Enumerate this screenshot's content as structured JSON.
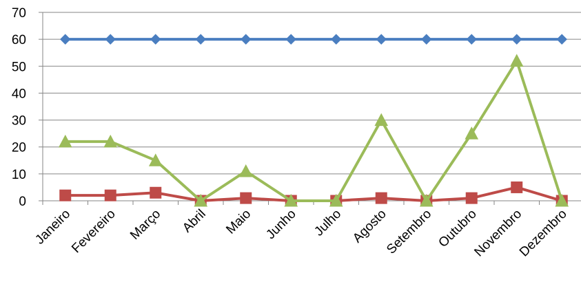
{
  "chart_data": {
    "type": "line",
    "categories": [
      "Janeiro",
      "Fevereiro",
      "Março",
      "Abril",
      "Maio",
      "Junho",
      "Julho",
      "Agosto",
      "Setembro",
      "Outubro",
      "Novembro",
      "Dezembro"
    ],
    "ylim": [
      0,
      70
    ],
    "yticks": [
      0,
      10,
      20,
      30,
      40,
      50,
      60,
      70
    ],
    "grid": true,
    "legend": "none",
    "series": [
      {
        "color": "#4A7EC0",
        "marker": "diamond",
        "values": [
          60,
          60,
          60,
          60,
          60,
          60,
          60,
          60,
          60,
          60,
          60,
          60
        ]
      },
      {
        "color": "#BE4B48",
        "marker": "square",
        "values": [
          2,
          2,
          3,
          0,
          1,
          0,
          0,
          1,
          0,
          1,
          5,
          0
        ]
      },
      {
        "color": "#9BBB59",
        "marker": "triangle",
        "values": [
          22,
          22,
          15,
          0,
          11,
          0,
          0,
          30,
          0,
          25,
          52,
          0
        ]
      }
    ]
  }
}
